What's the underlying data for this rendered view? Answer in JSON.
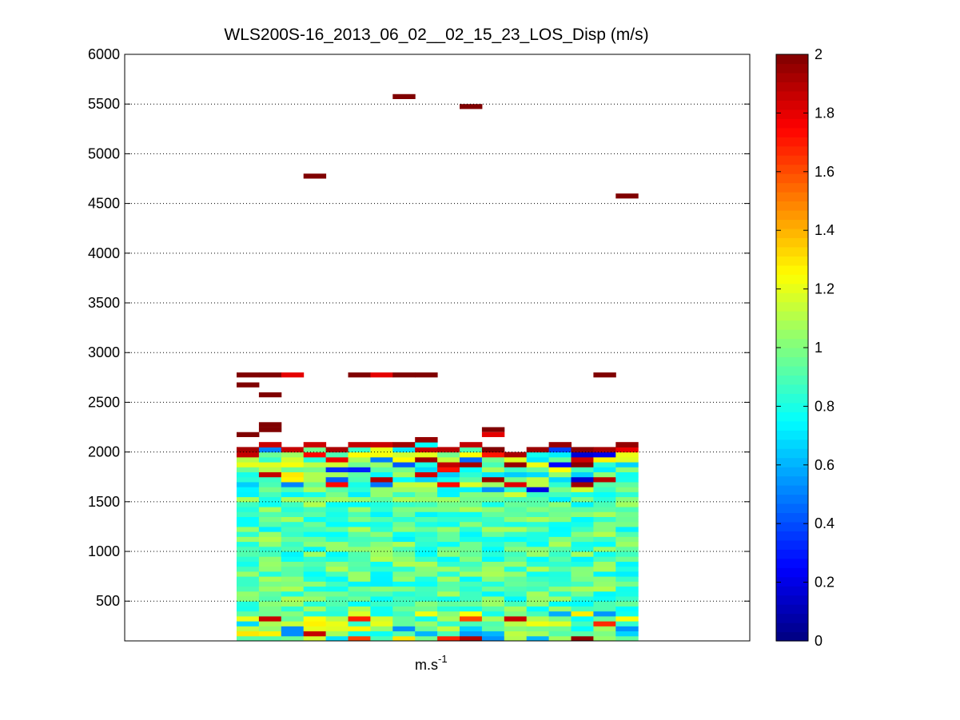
{
  "chart_data": {
    "type": "heatmap",
    "title": "WLS200S-16_2013_06_02__02_15_23_LOS_Disp (m/s)",
    "xlabel": "m.s",
    "xlabel_superscript": "-1",
    "ylim": [
      100,
      6000
    ],
    "yticks": [
      500,
      1000,
      1500,
      2000,
      2500,
      3000,
      3500,
      4000,
      4500,
      5000,
      5500,
      6000
    ],
    "grid": "dotted horizontal",
    "colorbar": {
      "colormap": "jet",
      "range": [
        0,
        2
      ],
      "ticks": [
        0,
        0.2,
        0.4,
        0.6,
        0.8,
        1,
        1.2,
        1.4,
        1.6,
        1.8,
        2
      ],
      "tick_labels": [
        "0",
        "0.2",
        "0.4",
        "0.6",
        "0.8",
        "1",
        "1.2",
        "1.4",
        "1.6",
        "1.8",
        "2"
      ]
    },
    "columns": 18,
    "row_height_m": 50,
    "dense_region": {
      "ymin": 100,
      "ymax": 2050,
      "columns": [
        0,
        17
      ],
      "typical_value": 0.9
    },
    "column_tops_m": [
      2050,
      2100,
      2050,
      2100,
      2050,
      2100,
      2100,
      2100,
      2150,
      2050,
      2100,
      2050,
      2000,
      2050,
      2100,
      2050,
      2050,
      2100
    ],
    "cells": [
      {
        "col": 0,
        "y": 2750,
        "v": 2
      },
      {
        "col": 1,
        "y": 2750,
        "v": 2
      },
      {
        "col": 2,
        "y": 2750,
        "v": 1.8
      },
      {
        "col": 5,
        "y": 2750,
        "v": 2
      },
      {
        "col": 6,
        "y": 2750,
        "v": 1.8
      },
      {
        "col": 7,
        "y": 2750,
        "v": 2
      },
      {
        "col": 8,
        "y": 2750,
        "v": 2
      },
      {
        "col": 16,
        "y": 2750,
        "v": 2
      },
      {
        "col": 0,
        "y": 2650,
        "v": 2
      },
      {
        "col": 1,
        "y": 2550,
        "v": 2
      },
      {
        "col": 1,
        "y": 2250,
        "v": 2
      },
      {
        "col": 1,
        "y": 2200,
        "v": 2
      },
      {
        "col": 0,
        "y": 2150,
        "v": 2
      },
      {
        "col": 11,
        "y": 2200,
        "v": 2
      },
      {
        "col": 11,
        "y": 2150,
        "v": 1.8
      },
      {
        "col": 3,
        "y": 4750,
        "v": 2
      },
      {
        "col": 7,
        "y": 5550,
        "v": 2
      },
      {
        "col": 10,
        "y": 5450,
        "v": 2
      },
      {
        "col": 17,
        "y": 4550,
        "v": 2
      }
    ]
  }
}
